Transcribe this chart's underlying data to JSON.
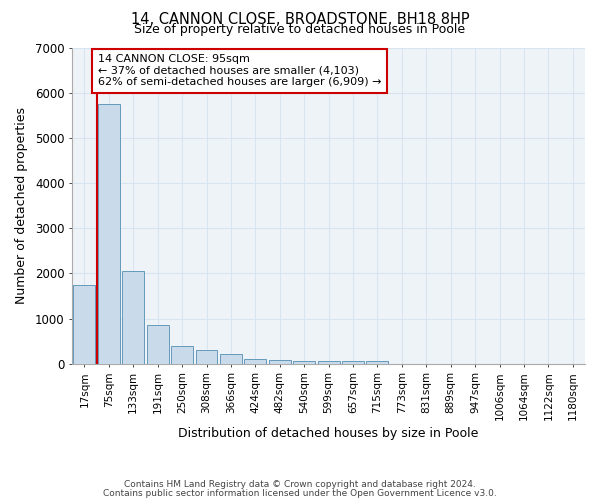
{
  "title1": "14, CANNON CLOSE, BROADSTONE, BH18 8HP",
  "title2": "Size of property relative to detached houses in Poole",
  "xlabel": "Distribution of detached houses by size in Poole",
  "ylabel": "Number of detached properties",
  "footer1": "Contains HM Land Registry data © Crown copyright and database right 2024.",
  "footer2": "Contains public sector information licensed under the Open Government Licence v3.0.",
  "bar_color": "#c9daea",
  "bar_edge_color": "#6699bb",
  "categories": [
    "17sqm",
    "75sqm",
    "133sqm",
    "191sqm",
    "250sqm",
    "308sqm",
    "366sqm",
    "424sqm",
    "482sqm",
    "540sqm",
    "599sqm",
    "657sqm",
    "715sqm",
    "773sqm",
    "831sqm",
    "889sqm",
    "947sqm",
    "1006sqm",
    "1064sqm",
    "1122sqm",
    "1180sqm"
  ],
  "values": [
    1750,
    5750,
    2050,
    850,
    400,
    310,
    220,
    110,
    80,
    60,
    50,
    60,
    60,
    0,
    0,
    0,
    0,
    0,
    0,
    0,
    0
  ],
  "ylim": [
    0,
    7000
  ],
  "yticks": [
    0,
    1000,
    2000,
    3000,
    4000,
    5000,
    6000,
    7000
  ],
  "annotation_text": "14 CANNON CLOSE: 95sqm\n← 37% of detached houses are smaller (4,103)\n62% of semi-detached houses are larger (6,909) →",
  "red_line_color": "#cc0000",
  "annotation_box_facecolor": "#ffffff",
  "annotation_box_edgecolor": "#cc0000",
  "grid_color": "#d8e4ee",
  "background_color": "#eef3f8",
  "red_line_x": 0.5
}
